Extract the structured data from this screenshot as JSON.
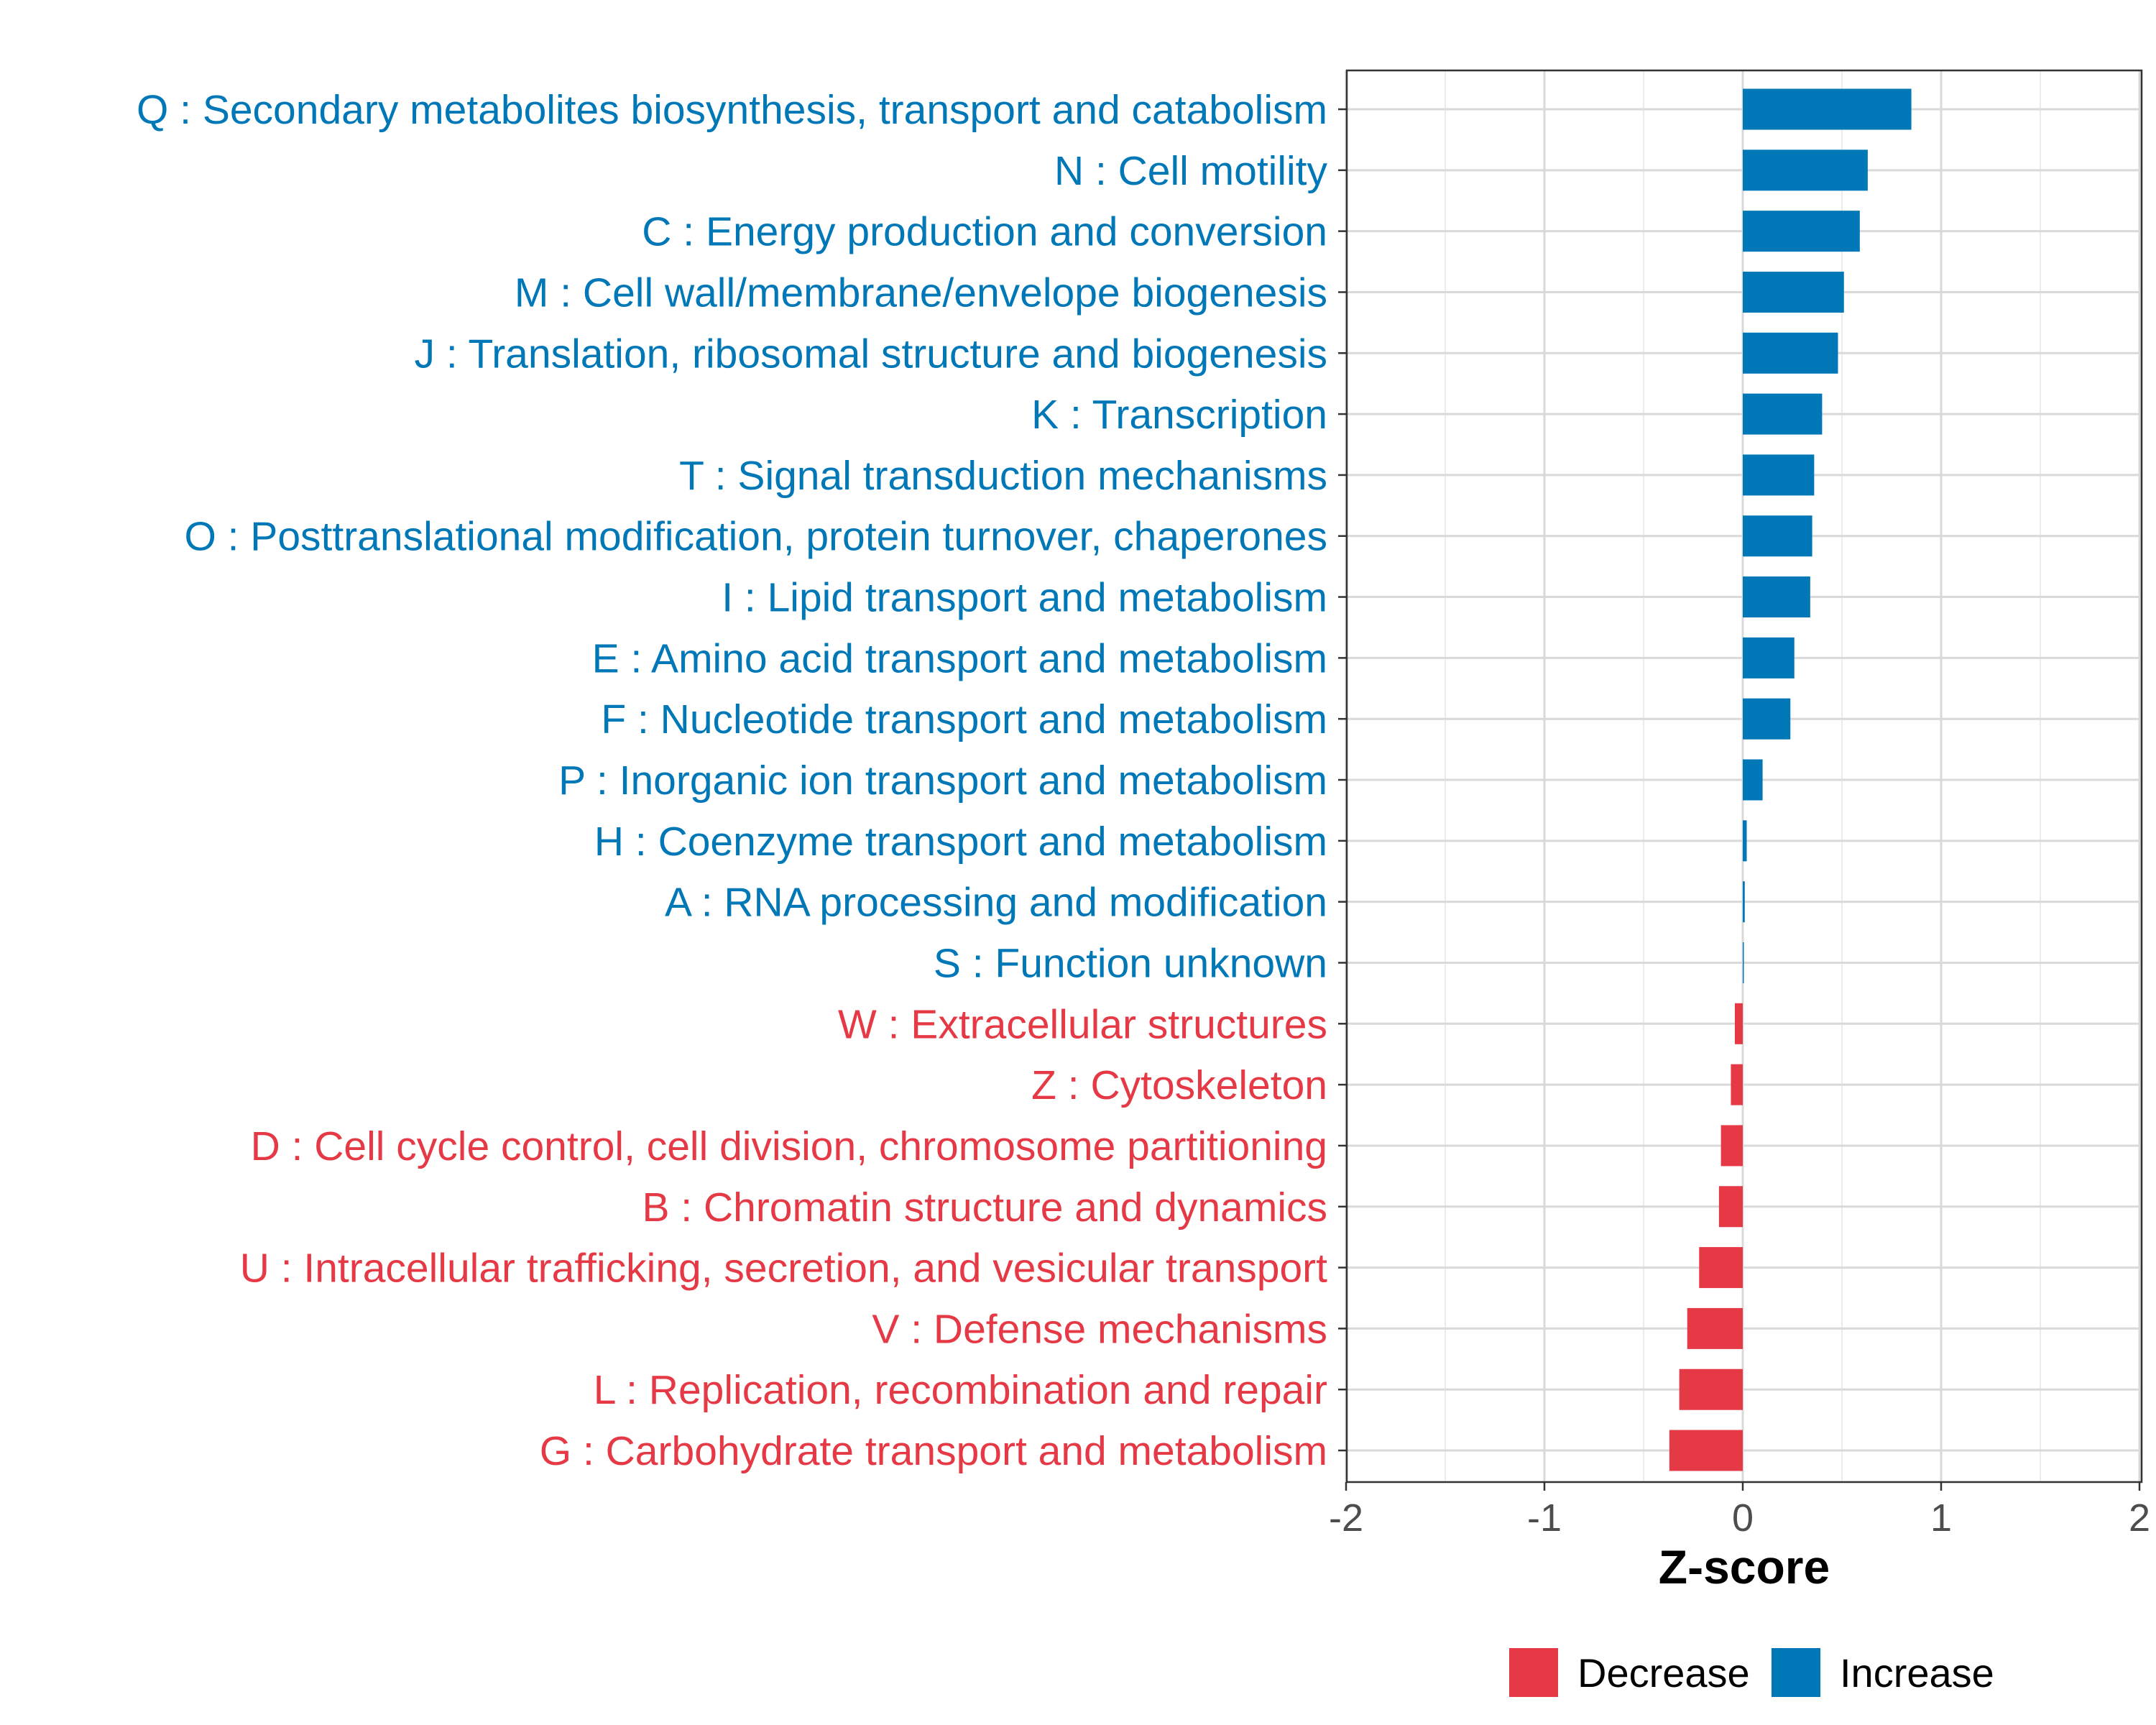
{
  "chart_data": {
    "type": "bar",
    "orientation": "horizontal",
    "xlabel": "Z-score",
    "ylabel": "",
    "xlim": [
      -2,
      2
    ],
    "xticks": [
      -2,
      -1,
      0,
      1,
      2
    ],
    "grid": true,
    "legend_position": "bottom",
    "colors": {
      "Decrease": "#E63946",
      "Increase": "#0077B6"
    },
    "legend": [
      {
        "label": "Decrease",
        "color": "#E63946"
      },
      {
        "label": "Increase",
        "color": "#0077B6"
      }
    ],
    "bars": [
      {
        "category": "Q : Secondary metabolites biosynthesis, transport and catabolism",
        "value": 0.85,
        "direction": "Increase"
      },
      {
        "category": "N : Cell motility",
        "value": 0.63,
        "direction": "Increase"
      },
      {
        "category": "C : Energy production and conversion",
        "value": 0.59,
        "direction": "Increase"
      },
      {
        "category": "M : Cell wall/membrane/envelope biogenesis",
        "value": 0.51,
        "direction": "Increase"
      },
      {
        "category": "J : Translation, ribosomal structure and biogenesis",
        "value": 0.48,
        "direction": "Increase"
      },
      {
        "category": "K : Transcription",
        "value": 0.4,
        "direction": "Increase"
      },
      {
        "category": "T : Signal transduction mechanisms",
        "value": 0.36,
        "direction": "Increase"
      },
      {
        "category": "O : Posttranslational modification, protein turnover, chaperones",
        "value": 0.35,
        "direction": "Increase"
      },
      {
        "category": "I : Lipid transport and metabolism",
        "value": 0.34,
        "direction": "Increase"
      },
      {
        "category": "E : Amino acid transport and metabolism",
        "value": 0.26,
        "direction": "Increase"
      },
      {
        "category": "F : Nucleotide transport and metabolism",
        "value": 0.24,
        "direction": "Increase"
      },
      {
        "category": "P : Inorganic ion transport and metabolism",
        "value": 0.1,
        "direction": "Increase"
      },
      {
        "category": "H : Coenzyme transport and metabolism",
        "value": 0.02,
        "direction": "Increase"
      },
      {
        "category": "A : RNA processing and modification",
        "value": 0.01,
        "direction": "Increase"
      },
      {
        "category": "S : Function unknown",
        "value": 0.003,
        "direction": "Increase"
      },
      {
        "category": "W : Extracellular structures",
        "value": -0.04,
        "direction": "Decrease"
      },
      {
        "category": "Z : Cytoskeleton",
        "value": -0.06,
        "direction": "Decrease"
      },
      {
        "category": "D : Cell cycle control, cell division, chromosome partitioning",
        "value": -0.11,
        "direction": "Decrease"
      },
      {
        "category": "B : Chromatin structure and dynamics",
        "value": -0.12,
        "direction": "Decrease"
      },
      {
        "category": "U : Intracellular trafficking, secretion, and vesicular transport",
        "value": -0.22,
        "direction": "Decrease"
      },
      {
        "category": "V : Defense mechanisms",
        "value": -0.28,
        "direction": "Decrease"
      },
      {
        "category": "L : Replication, recombination and repair",
        "value": -0.32,
        "direction": "Decrease"
      },
      {
        "category": "G : Carbohydrate transport and metabolism",
        "value": -0.37,
        "direction": "Decrease"
      }
    ]
  }
}
